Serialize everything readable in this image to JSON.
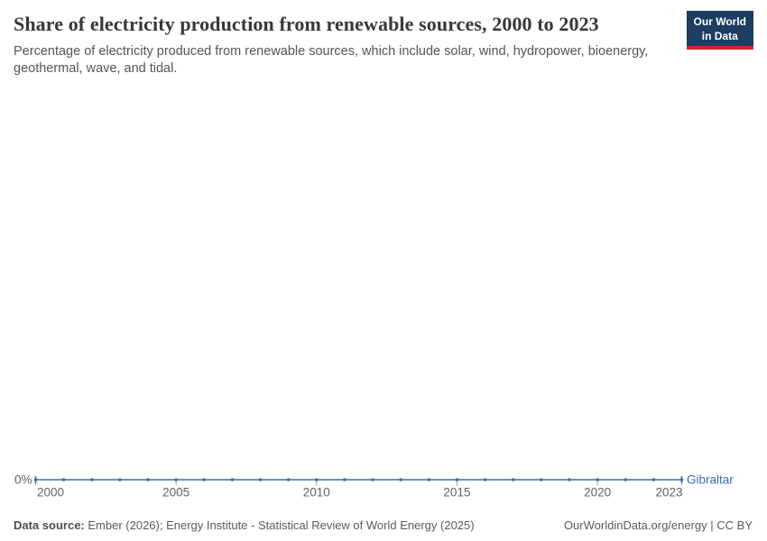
{
  "header": {
    "title": "Share of electricity production from renewable sources, 2000 to 2023",
    "subtitle": "Percentage of electricity produced from renewable sources, which include solar, wind, hydropower, bioenergy, geothermal, wave, and tidal.",
    "logo_line1": "Our World",
    "logo_line2": "in Data"
  },
  "chart_data": {
    "type": "line",
    "title": "Share of electricity production from renewable sources, 2000 to 2023",
    "x": [
      2000,
      2001,
      2002,
      2003,
      2004,
      2005,
      2006,
      2007,
      2008,
      2009,
      2010,
      2011,
      2012,
      2013,
      2014,
      2015,
      2016,
      2017,
      2018,
      2019,
      2020,
      2021,
      2022,
      2023
    ],
    "series": [
      {
        "name": "Gibraltar",
        "color": "#3c6cb4",
        "values": [
          0,
          0,
          0,
          0,
          0,
          0,
          0,
          0,
          0,
          0,
          0,
          0,
          0,
          0,
          0,
          0,
          0,
          0,
          0,
          0,
          0,
          0,
          0,
          0
        ]
      }
    ],
    "x_tick_labels": [
      "2000",
      "2005",
      "2010",
      "2015",
      "2020",
      "2023"
    ],
    "y_tick_labels": [
      "0%"
    ],
    "xlabel": "",
    "ylabel": "",
    "grid": false,
    "legend_position": "end-of-line-label"
  },
  "footer": {
    "datasource_label": "Data source:",
    "datasource_text": "Ember (2026); Energy Institute - Statistical Review of World Energy (2025)",
    "credit": "OurWorldinData.org/energy | CC BY"
  },
  "colors": {
    "line": "#3c6cb4",
    "logo_background": "#1d3d63",
    "logo_stripe": "#d2262b",
    "title_text": "#383838",
    "subtitle_text": "#555555",
    "axis_text": "#636363",
    "tick": "#a5a5a5"
  }
}
